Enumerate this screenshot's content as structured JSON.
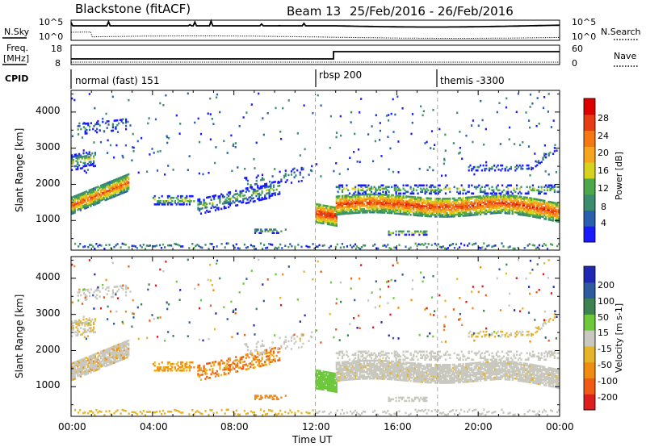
{
  "header": {
    "station": "Blackstone (fitACF)",
    "beam": "Beam 13",
    "dates": "25/Feb/2016 - 26/Feb/2016"
  },
  "noise_panel": {
    "left_label": "N.Sky",
    "left_ticks": [
      "10^5",
      "10^0"
    ],
    "right_ticks": [
      "10^5",
      "10^0"
    ],
    "right_label": "N.Search"
  },
  "freq_panel": {
    "left_label_1": "Freq.",
    "left_label_2": "[MHz]",
    "left_ticks": [
      "18",
      "8"
    ],
    "right_ticks": [
      "60",
      "0"
    ],
    "right_label": "Nave"
  },
  "cpid_panel": {
    "label": "CPID",
    "modes": [
      {
        "text": "normal (fast) 151",
        "start_hour": 0
      },
      {
        "text": "rbsp 200",
        "start_hour": 12
      },
      {
        "text": "themis -3300",
        "start_hour": 18
      }
    ]
  },
  "chart_data": [
    {
      "type": "heatmap",
      "parameter": "Power",
      "ylabel": "Slant Range [km]",
      "yticks": [
        "1000",
        "2000",
        "3000",
        "4000"
      ],
      "ylim": [
        180,
        4600
      ],
      "colorbar_label": "Power [dB]",
      "colorbar_ticks": [
        "4",
        "8",
        "12",
        "16",
        "20",
        "24",
        "28"
      ],
      "colors": [
        "#1a1aff",
        "#2a5fb0",
        "#3c8c6e",
        "#4ca84a",
        "#d7d21e",
        "#f5a51e",
        "#f57814",
        "#e63c14",
        "#dc0000"
      ]
    },
    {
      "type": "heatmap",
      "parameter": "Velocity",
      "ylabel": "Slant Range [km]",
      "yticks": [
        "1000",
        "2000",
        "3000",
        "4000"
      ],
      "ylim": [
        180,
        4600
      ],
      "colorbar_label": "Velocity [m s-1]",
      "colorbar_ticks": [
        "200",
        "100",
        "50",
        "15",
        "-15",
        "-50",
        "-100",
        "-200"
      ],
      "colors": [
        "#1e28b4",
        "#2e5aa0",
        "#3d8250",
        "#6ec83c",
        "#c8c8be",
        "#e6b428",
        "#f08c14",
        "#f05a14",
        "#dc1e1e"
      ]
    }
  ],
  "time_axis": {
    "ticks": [
      "00:00",
      "04:00",
      "08:00",
      "12:00",
      "16:00",
      "20:00",
      "00:00"
    ],
    "label": "Time UT"
  }
}
